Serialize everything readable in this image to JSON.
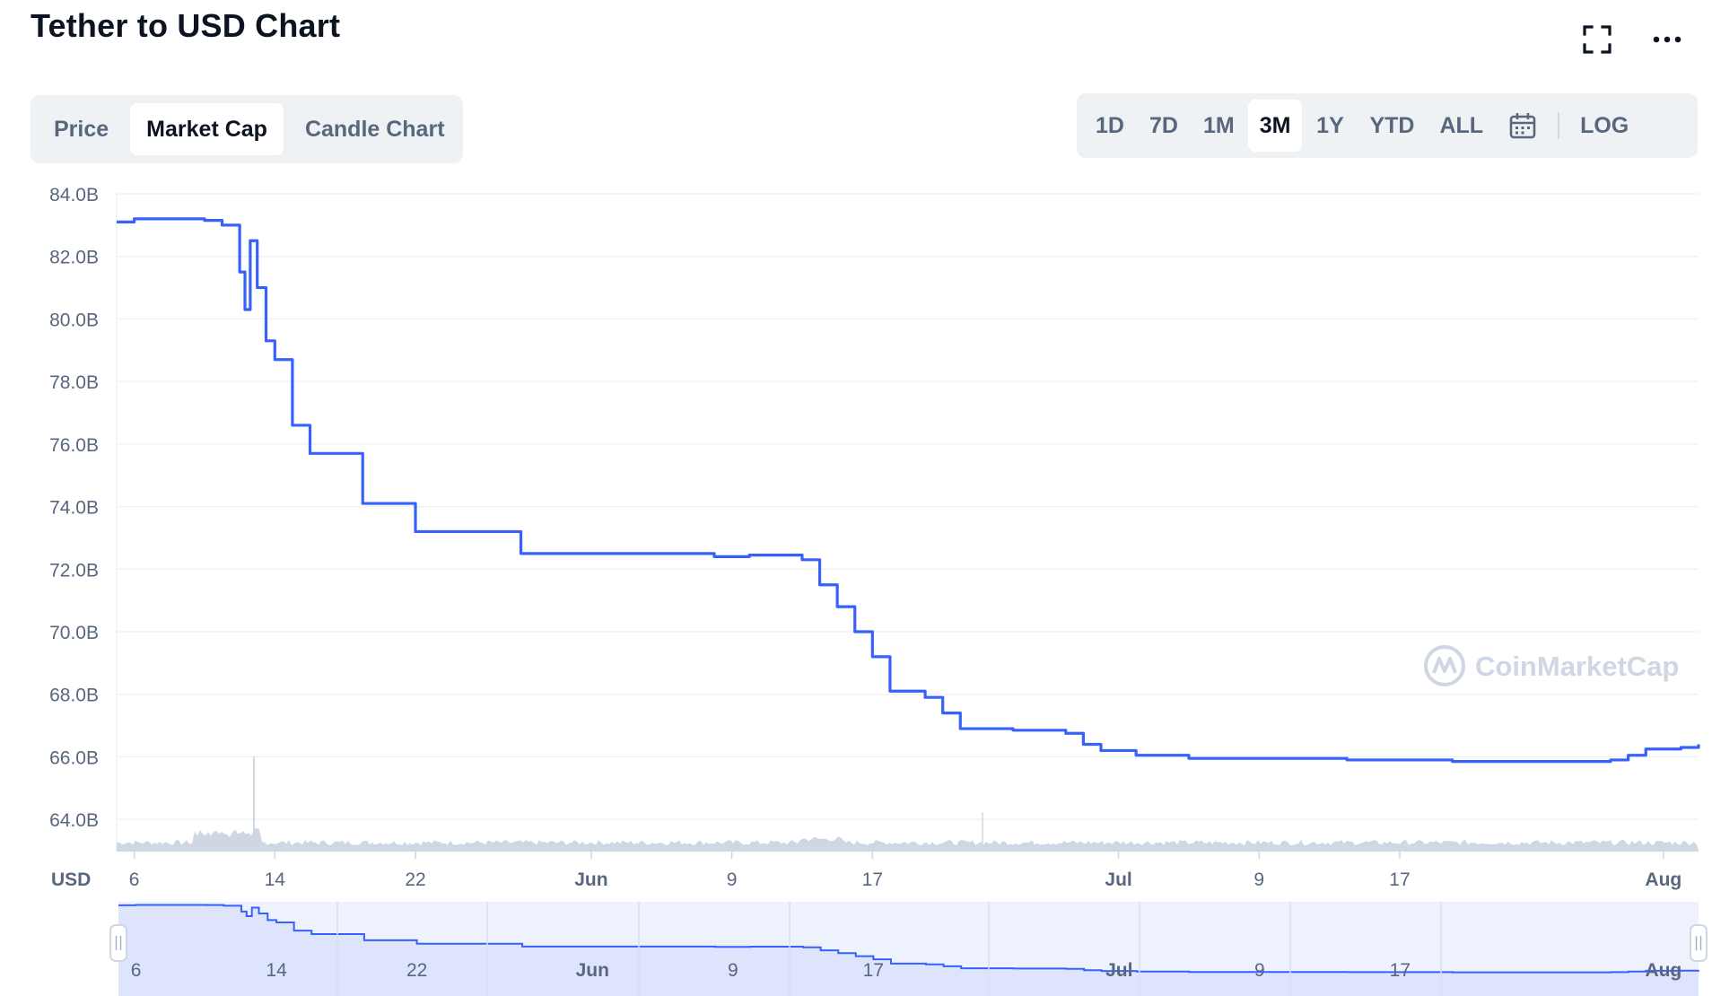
{
  "page": {
    "title": "Tether to USD Chart"
  },
  "header_icons": [
    "fullscreen-icon",
    "more-options-icon"
  ],
  "chart_tabs": [
    {
      "label": "Price",
      "active": false
    },
    {
      "label": "Market Cap",
      "active": true
    },
    {
      "label": "Candle Chart",
      "active": false
    }
  ],
  "range_buttons": [
    {
      "label": "1D",
      "active": false
    },
    {
      "label": "7D",
      "active": false
    },
    {
      "label": "1M",
      "active": false
    },
    {
      "label": "3M",
      "active": true
    },
    {
      "label": "1Y",
      "active": false
    },
    {
      "label": "YTD",
      "active": false
    },
    {
      "label": "ALL",
      "active": false
    }
  ],
  "calendar_icon": "calendar-icon",
  "log_label": "LOG",
  "watermark": "CoinMarketCap",
  "colors": {
    "line": "#3861fb",
    "grid": "#eff2f5",
    "volume": "#cfd6e4",
    "navigator_fill": "#dde4fb",
    "navigator_bg": "#eef2fd",
    "text_muted": "#58667e"
  },
  "chart_data": {
    "type": "line",
    "title": "Tether to USD Chart",
    "series": [
      {
        "name": "Market Cap",
        "points": [
          [
            "05-05",
            83.1
          ],
          [
            "05-06",
            83.2
          ],
          [
            "05-08",
            83.2
          ],
          [
            "05-10",
            83.15
          ],
          [
            "05-11",
            83.0
          ],
          [
            "05-12",
            81.5
          ],
          [
            "05-12.3",
            80.3
          ],
          [
            "05-12.6",
            82.5
          ],
          [
            "05-13",
            81.0
          ],
          [
            "05-13.5",
            79.3
          ],
          [
            "05-14",
            78.7
          ],
          [
            "05-15",
            76.6
          ],
          [
            "05-16",
            75.7
          ],
          [
            "05-18",
            75.7
          ],
          [
            "05-19",
            74.1
          ],
          [
            "05-21",
            74.1
          ],
          [
            "05-22",
            73.2
          ],
          [
            "05-25",
            73.2
          ],
          [
            "05-28",
            72.5
          ],
          [
            "06-03",
            72.5
          ],
          [
            "06-08",
            72.4
          ],
          [
            "06-10",
            72.45
          ],
          [
            "06-13",
            72.3
          ],
          [
            "06-14",
            71.5
          ],
          [
            "06-15",
            70.8
          ],
          [
            "06-16",
            70.0
          ],
          [
            "06-17",
            69.2
          ],
          [
            "06-18",
            68.1
          ],
          [
            "06-20",
            67.9
          ],
          [
            "06-21",
            67.4
          ],
          [
            "06-22",
            66.9
          ],
          [
            "06-25",
            66.85
          ],
          [
            "06-28",
            66.75
          ],
          [
            "06-29",
            66.4
          ],
          [
            "06-30",
            66.2
          ],
          [
            "07-02",
            66.05
          ],
          [
            "07-05",
            65.95
          ],
          [
            "07-10",
            65.95
          ],
          [
            "07-14",
            65.9
          ],
          [
            "07-20",
            65.85
          ],
          [
            "07-26",
            65.85
          ],
          [
            "07-29",
            65.9
          ],
          [
            "07-30",
            66.05
          ],
          [
            "07-31",
            66.25
          ],
          [
            "08-02",
            66.3
          ],
          [
            "08-03",
            66.4
          ]
        ]
      }
    ],
    "y_ticks": [
      "84.0B",
      "82.0B",
      "80.0B",
      "78.0B",
      "76.0B",
      "74.0B",
      "72.0B",
      "70.0B",
      "68.0B",
      "66.0B",
      "64.0B"
    ],
    "ylim": [
      63.0,
      84.0
    ],
    "y_unit_label": "USD",
    "x_ticks": [
      {
        "label": "6",
        "bold": false
      },
      {
        "label": "14",
        "bold": false
      },
      {
        "label": "22",
        "bold": false
      },
      {
        "label": "Jun",
        "bold": true
      },
      {
        "label": "9",
        "bold": false
      },
      {
        "label": "17",
        "bold": false
      },
      {
        "label": "Jul",
        "bold": true
      },
      {
        "label": "9",
        "bold": false
      },
      {
        "label": "17",
        "bold": false
      },
      {
        "label": "Aug",
        "bold": true
      }
    ],
    "navigator_ticks": [
      "6",
      "14",
      "22",
      "Jun",
      "9",
      "17",
      "Jul",
      "9",
      "17",
      "Aug"
    ],
    "grid": true,
    "volume_bars": true
  }
}
